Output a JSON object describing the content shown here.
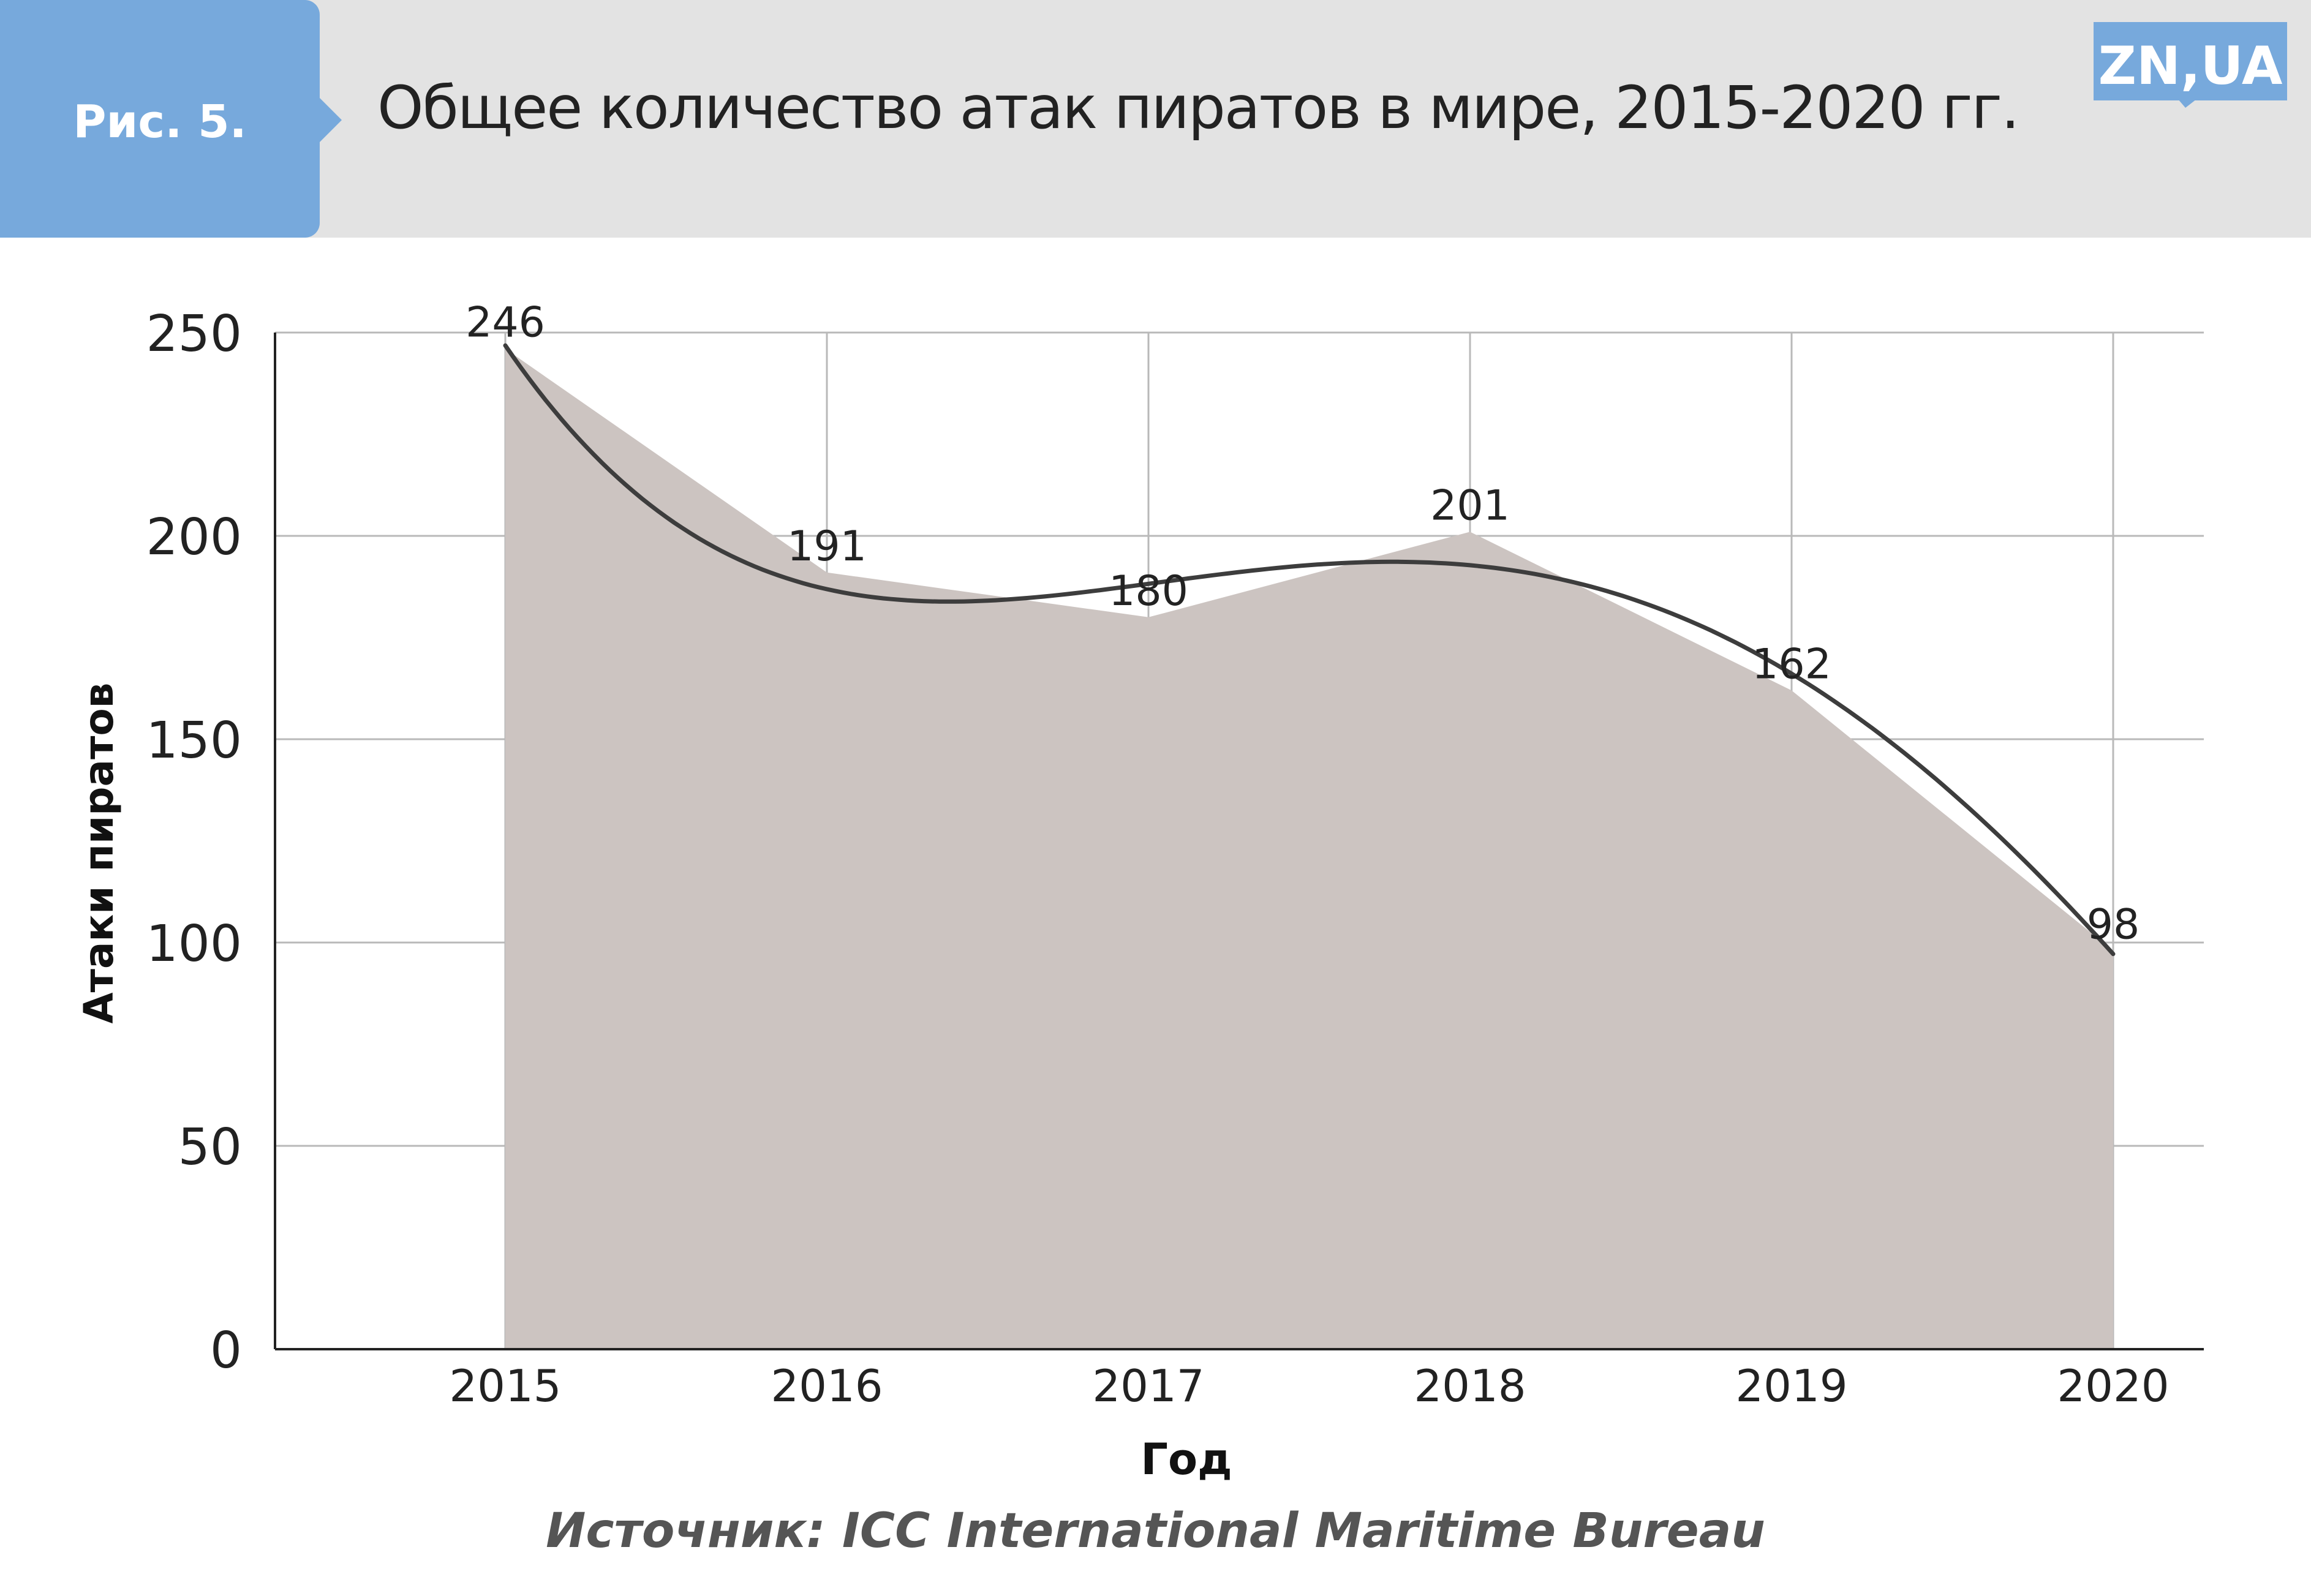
{
  "header": {
    "figure_label": "Рис. 5.",
    "title": "Общее количество атак пиратов в мире, 2015-2020 гг.",
    "logo_text": "ZN,UA"
  },
  "source": "Источник: ICC International Maritime Bureau",
  "colors": {
    "header_bg": "#e3e3e3",
    "badge": "#77a9dc",
    "area_fill": "#ccc4c1",
    "trend_line": "#3d3d3d",
    "grid": "#b9b9b9"
  },
  "chart_data": {
    "type": "area",
    "title": "Общее количество атак пиратов в мире, 2015-2020 гг.",
    "xlabel": "Год",
    "ylabel": "Атаки пиратов",
    "categories": [
      "2015",
      "2016",
      "2017",
      "2018",
      "2019",
      "2020"
    ],
    "series": [
      {
        "values": [
          246,
          191,
          180,
          201,
          162,
          98
        ]
      }
    ],
    "trendline": "smooth polynomial trend line",
    "data_labels": [
      "246",
      "191",
      "180",
      "201",
      "162",
      "98"
    ],
    "ylim": [
      0,
      250
    ],
    "yticks": [
      0,
      50,
      100,
      150,
      200,
      250
    ],
    "grid": true,
    "legend": "none"
  }
}
